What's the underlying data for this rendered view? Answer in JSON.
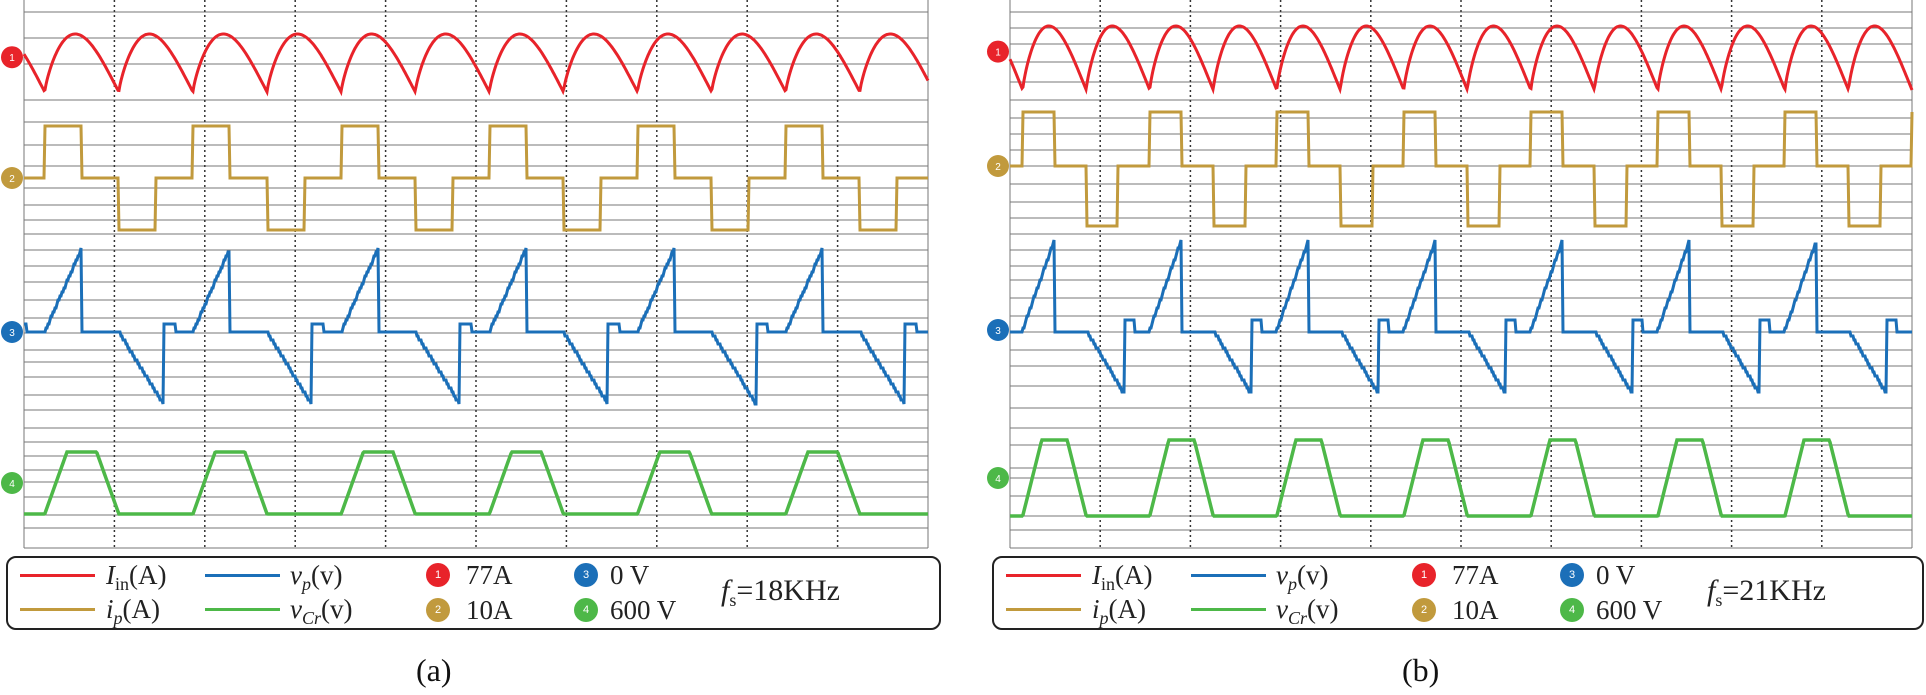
{
  "colors": {
    "i_in": "#e8232a",
    "i_p": "#c19a3d",
    "v_p": "#1b6fb8",
    "v_cr": "#4db848",
    "grid": "#555555"
  },
  "legend_labels": {
    "i_in": {
      "sym": "I",
      "sub": "in",
      "unit": "(A)"
    },
    "i_p": {
      "sym": "i",
      "sub": "p",
      "unit": "(A)"
    },
    "v_p": {
      "sym": "v",
      "sub": "p",
      "unit": "(v)"
    },
    "v_cr": {
      "sym": "v",
      "sub": "Cr",
      "unit": "(v)"
    }
  },
  "channel_scales": [
    {
      "badge": "1",
      "value": "77A",
      "color": "#e8232a"
    },
    {
      "badge": "2",
      "value": "10A",
      "color": "#c19a3d"
    },
    {
      "badge": "3",
      "value": "0 V",
      "color": "#1b6fb8"
    },
    {
      "badge": "4",
      "value": "600 V",
      "color": "#4db848"
    }
  ],
  "chart_data": [
    {
      "type": "line",
      "panel_caption": "(a)",
      "frequency_label": {
        "sym": "f",
        "sub": "s",
        "value": "=18KHz"
      },
      "cycles_on_screen": 6.1,
      "series": [
        {
          "name": "I_in(A)",
          "waveform": "rectified-sine ripple"
        },
        {
          "name": "i_p(A)",
          "waveform": "three-level square"
        },
        {
          "name": "v_p(v)",
          "waveform": "ramp and step"
        },
        {
          "name": "v_Cr(v)",
          "waveform": "trapezoid"
        }
      ]
    },
    {
      "type": "line",
      "panel_caption": "(b)",
      "frequency_label": {
        "sym": "f",
        "sub": "s",
        "value": "=21KHz"
      },
      "cycles_on_screen": 7.1,
      "series": [
        {
          "name": "I_in(A)",
          "waveform": "rectified-sine ripple"
        },
        {
          "name": "i_p(A)",
          "waveform": "three-level square"
        },
        {
          "name": "v_p(v)",
          "waveform": "ramp and step"
        },
        {
          "name": "v_Cr(v)",
          "waveform": "trapezoid"
        }
      ]
    }
  ]
}
